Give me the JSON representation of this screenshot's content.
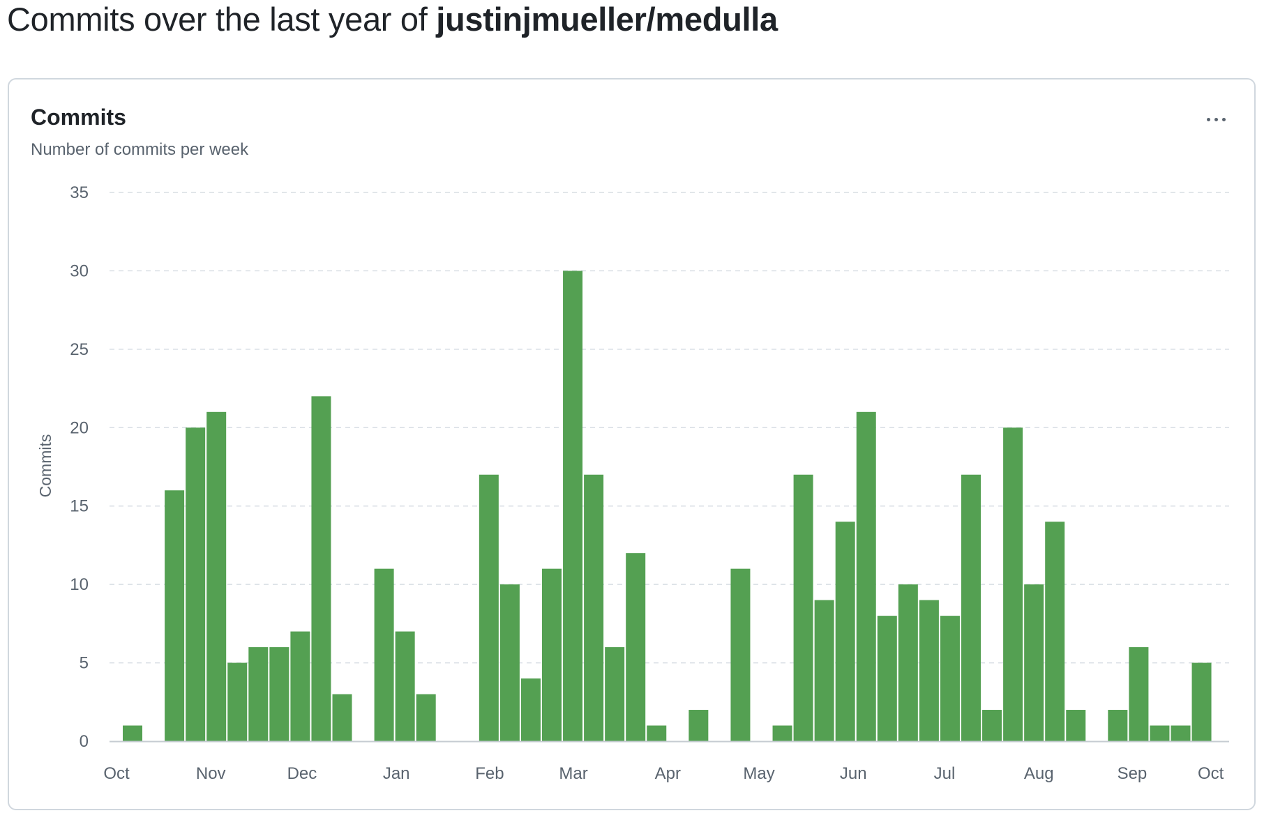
{
  "header": {
    "title_prefix": "Commits over the last year of ",
    "repo": "justinjmueller/medulla"
  },
  "card": {
    "title": "Commits",
    "subtitle": "Number of commits per week",
    "more_icon": "kebab-horizontal-icon"
  },
  "colors": {
    "bar": "#54a052",
    "grid": "#d8dee4",
    "axis": "#c6ccd2",
    "text": "#59636e"
  },
  "chart_data": {
    "type": "bar",
    "ylabel": "Commits",
    "xlabel": "",
    "ylim": [
      0,
      35
    ],
    "yticks": [
      0,
      5,
      10,
      15,
      20,
      25,
      30,
      35
    ],
    "grid": true,
    "values": [
      1,
      0,
      16,
      20,
      21,
      5,
      6,
      6,
      7,
      22,
      3,
      0,
      11,
      7,
      3,
      0,
      0,
      17,
      10,
      4,
      11,
      30,
      17,
      6,
      12,
      1,
      0,
      2,
      0,
      11,
      0,
      1,
      17,
      9,
      14,
      21,
      8,
      10,
      9,
      8,
      17,
      2,
      20,
      10,
      14,
      2,
      0,
      2,
      6,
      1,
      1,
      5
    ],
    "month_ticks": [
      {
        "label": "Oct",
        "week": 0
      },
      {
        "label": "Nov",
        "week": 4.5
      },
      {
        "label": "Dec",
        "week": 8.85
      },
      {
        "label": "Jan",
        "week": 13.35
      },
      {
        "label": "Feb",
        "week": 17.8
      },
      {
        "label": "Mar",
        "week": 21.8
      },
      {
        "label": "Apr",
        "week": 26.3
      },
      {
        "label": "May",
        "week": 30.65
      },
      {
        "label": "Jun",
        "week": 35.15
      },
      {
        "label": "Jul",
        "week": 39.5
      },
      {
        "label": "Aug",
        "week": 44
      },
      {
        "label": "Sep",
        "week": 48.45
      },
      {
        "label": "Oct",
        "week": 52.2
      }
    ]
  }
}
